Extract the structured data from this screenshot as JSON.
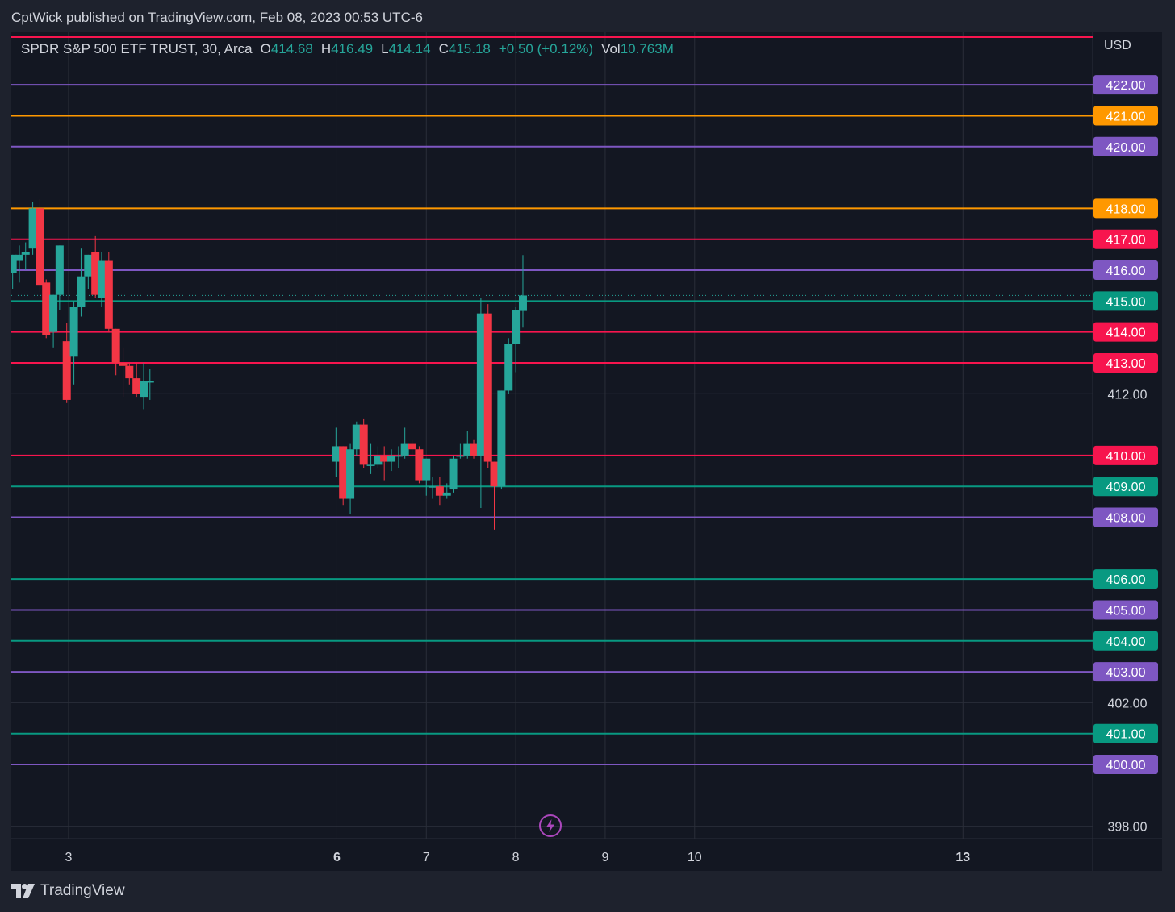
{
  "header": {
    "publisher": "CptWick published on TradingView.com, Feb 08, 2023 00:53 UTC-6"
  },
  "legend": {
    "symbol": "SPDR S&P 500 ETF TRUST, 30, Arca",
    "o_label": "O",
    "o_value": "414.68",
    "h_label": "H",
    "h_value": "416.49",
    "l_label": "L",
    "l_value": "414.14",
    "c_label": "C",
    "c_value": "415.18",
    "change": "+0.50 (+0.12%)",
    "vol_label": "Vol",
    "vol_value": "10.763M"
  },
  "currency": "USD",
  "footer": {
    "brand": "TradingView"
  },
  "icons": {
    "logo": "tradingview-logo-icon",
    "events": "lightning-bolt-icon"
  },
  "colors": {
    "background": "#131722",
    "frame": "#1e222d",
    "up": "#26a69a",
    "down": "#f23645",
    "purple": "#7e57c2",
    "orange": "#ff9800",
    "green": "#089981",
    "red": "#f7154e",
    "grid": "#2a2e39",
    "text": "#d1d4dc"
  },
  "chart_data": {
    "type": "candlestick",
    "title": "SPDR S&P 500 ETF TRUST, 30, Arca",
    "ylabel": "USD",
    "ylim": [
      397.6,
      423.7
    ],
    "xlim": [
      2.36,
      14.45
    ],
    "y_tick_labels": [
      "412.00",
      "402.00",
      "398.00"
    ],
    "x_ticks": [
      {
        "value": 3,
        "label": "3",
        "bold": false
      },
      {
        "value": 6,
        "label": "6",
        "bold": true
      },
      {
        "value": 7,
        "label": "7",
        "bold": false
      },
      {
        "value": 8,
        "label": "8",
        "bold": false
      },
      {
        "value": 9,
        "label": "9",
        "bold": false
      },
      {
        "value": 10,
        "label": "10",
        "bold": false
      },
      {
        "value": 13,
        "label": "13",
        "bold": true
      }
    ],
    "grid": true,
    "candles": [
      {
        "x": 2.375,
        "o": 415.9,
        "h": 416.5,
        "l": 415.4,
        "c": 416.5
      },
      {
        "x": 2.45,
        "o": 416.3,
        "h": 416.8,
        "l": 415.6,
        "c": 416.5
      },
      {
        "x": 2.52,
        "o": 416.5,
        "h": 416.9,
        "l": 416.0,
        "c": 416.6
      },
      {
        "x": 2.6,
        "o": 416.7,
        "h": 418.2,
        "l": 416.5,
        "c": 418.0
      },
      {
        "x": 2.68,
        "o": 418.0,
        "h": 418.3,
        "l": 415.3,
        "c": 415.5
      },
      {
        "x": 2.75,
        "o": 415.6,
        "h": 415.7,
        "l": 413.8,
        "c": 413.9
      },
      {
        "x": 2.83,
        "o": 414.0,
        "h": 415.2,
        "l": 413.5,
        "c": 415.2
      },
      {
        "x": 2.9,
        "o": 415.2,
        "h": 416.8,
        "l": 414.7,
        "c": 416.8
      },
      {
        "x": 2.98,
        "o": 413.7,
        "h": 414.3,
        "l": 411.7,
        "c": 411.8
      },
      {
        "x": 3.06,
        "o": 413.2,
        "h": 415.0,
        "l": 412.3,
        "c": 414.8
      },
      {
        "x": 3.14,
        "o": 414.8,
        "h": 416.7,
        "l": 414.5,
        "c": 415.8
      },
      {
        "x": 3.22,
        "o": 415.8,
        "h": 416.5,
        "l": 415.4,
        "c": 416.5
      },
      {
        "x": 3.3,
        "o": 416.6,
        "h": 417.1,
        "l": 415.1,
        "c": 415.2
      },
      {
        "x": 3.37,
        "o": 415.1,
        "h": 416.6,
        "l": 414.8,
        "c": 416.3
      },
      {
        "x": 3.45,
        "o": 416.3,
        "h": 416.6,
        "l": 414.0,
        "c": 414.1
      },
      {
        "x": 3.53,
        "o": 414.1,
        "h": 414.1,
        "l": 412.6,
        "c": 413.0
      },
      {
        "x": 3.61,
        "o": 413.0,
        "h": 413.5,
        "l": 411.9,
        "c": 412.9
      },
      {
        "x": 3.68,
        "o": 412.9,
        "h": 413.0,
        "l": 412.3,
        "c": 412.5
      },
      {
        "x": 3.76,
        "o": 412.5,
        "h": 413.0,
        "l": 411.9,
        "c": 412.0
      },
      {
        "x": 3.84,
        "o": 411.9,
        "h": 413.0,
        "l": 411.5,
        "c": 412.4
      },
      {
        "x": 3.91,
        "o": 412.4,
        "h": 412.8,
        "l": 411.8,
        "c": 412.4
      },
      {
        "x": 5.99,
        "o": 409.8,
        "h": 410.9,
        "l": 409.3,
        "c": 410.3
      },
      {
        "x": 6.07,
        "o": 410.3,
        "h": 410.3,
        "l": 408.4,
        "c": 408.6
      },
      {
        "x": 6.15,
        "o": 408.6,
        "h": 410.4,
        "l": 408.1,
        "c": 410.2
      },
      {
        "x": 6.22,
        "o": 410.2,
        "h": 411.1,
        "l": 410.0,
        "c": 411.0
      },
      {
        "x": 6.3,
        "o": 411.0,
        "h": 411.2,
        "l": 409.6,
        "c": 409.7
      },
      {
        "x": 6.38,
        "o": 409.7,
        "h": 410.4,
        "l": 409.4,
        "c": 409.7
      },
      {
        "x": 6.46,
        "o": 409.7,
        "h": 410.3,
        "l": 409.6,
        "c": 410.0
      },
      {
        "x": 6.53,
        "o": 410.0,
        "h": 410.3,
        "l": 409.2,
        "c": 409.8
      },
      {
        "x": 6.61,
        "o": 409.8,
        "h": 410.2,
        "l": 409.5,
        "c": 410.0
      },
      {
        "x": 6.69,
        "o": 410.0,
        "h": 410.3,
        "l": 409.6,
        "c": 410.0
      },
      {
        "x": 6.76,
        "o": 410.0,
        "h": 410.9,
        "l": 409.9,
        "c": 410.4
      },
      {
        "x": 6.84,
        "o": 410.4,
        "h": 410.5,
        "l": 410.0,
        "c": 410.2
      },
      {
        "x": 6.92,
        "o": 410.2,
        "h": 410.3,
        "l": 409.1,
        "c": 409.2
      },
      {
        "x": 7.0,
        "o": 409.2,
        "h": 409.9,
        "l": 408.7,
        "c": 409.9
      },
      {
        "x": 7.07,
        "o": 409.0,
        "h": 409.3,
        "l": 408.6,
        "c": 409.0
      },
      {
        "x": 7.15,
        "o": 409.0,
        "h": 409.3,
        "l": 408.4,
        "c": 408.7
      },
      {
        "x": 7.23,
        "o": 408.7,
        "h": 409.1,
        "l": 408.6,
        "c": 408.8
      },
      {
        "x": 7.3,
        "o": 408.9,
        "h": 410.0,
        "l": 408.8,
        "c": 409.9
      },
      {
        "x": 7.38,
        "o": 410.0,
        "h": 410.4,
        "l": 409.9,
        "c": 410.0
      },
      {
        "x": 7.46,
        "o": 410.0,
        "h": 410.8,
        "l": 409.9,
        "c": 410.4
      },
      {
        "x": 7.53,
        "o": 410.4,
        "h": 410.5,
        "l": 409.9,
        "c": 410.0
      },
      {
        "x": 7.61,
        "o": 410.0,
        "h": 415.1,
        "l": 408.3,
        "c": 414.6
      },
      {
        "x": 7.69,
        "o": 414.6,
        "h": 414.9,
        "l": 409.6,
        "c": 409.8
      },
      {
        "x": 7.76,
        "o": 409.8,
        "h": 409.8,
        "l": 407.6,
        "c": 409.0
      },
      {
        "x": 7.84,
        "o": 409.0,
        "h": 412.1,
        "l": 408.9,
        "c": 412.1
      },
      {
        "x": 7.92,
        "o": 412.1,
        "h": 413.8,
        "l": 412.0,
        "c": 413.6
      },
      {
        "x": 8.0,
        "o": 413.6,
        "h": 414.8,
        "l": 412.7,
        "c": 414.7
      },
      {
        "x": 8.08,
        "o": 414.68,
        "h": 416.49,
        "l": 414.14,
        "c": 415.18
      }
    ],
    "horizontal_levels": [
      {
        "price": 424.0,
        "color": "#f7154e",
        "label": ""
      },
      {
        "price": 422.0,
        "color": "#7e57c2",
        "label": "422.00"
      },
      {
        "price": 421.0,
        "color": "#ff9800",
        "label": "421.00"
      },
      {
        "price": 420.0,
        "color": "#7e57c2",
        "label": "420.00"
      },
      {
        "price": 418.0,
        "color": "#ff9800",
        "label": "418.00"
      },
      {
        "price": 417.0,
        "color": "#f7154e",
        "label": "417.00"
      },
      {
        "price": 416.0,
        "color": "#7e57c2",
        "label": "416.00"
      },
      {
        "price": 415.0,
        "color": "#089981",
        "label": "415.00"
      },
      {
        "price": 414.0,
        "color": "#f7154e",
        "label": "414.00"
      },
      {
        "price": 413.0,
        "color": "#f7154e",
        "label": "413.00"
      },
      {
        "price": 410.0,
        "color": "#f7154e",
        "label": "410.00"
      },
      {
        "price": 409.0,
        "color": "#089981",
        "label": "409.00"
      },
      {
        "price": 408.0,
        "color": "#7e57c2",
        "label": "408.00"
      },
      {
        "price": 406.0,
        "color": "#089981",
        "label": "406.00"
      },
      {
        "price": 405.0,
        "color": "#7e57c2",
        "label": "405.00"
      },
      {
        "price": 404.0,
        "color": "#089981",
        "label": "404.00"
      },
      {
        "price": 403.0,
        "color": "#7e57c2",
        "label": "403.00"
      },
      {
        "price": 401.0,
        "color": "#089981",
        "label": "401.00"
      },
      {
        "price": 400.0,
        "color": "#7e57c2",
        "label": "400.00"
      }
    ],
    "last_price_line": 415.18
  }
}
